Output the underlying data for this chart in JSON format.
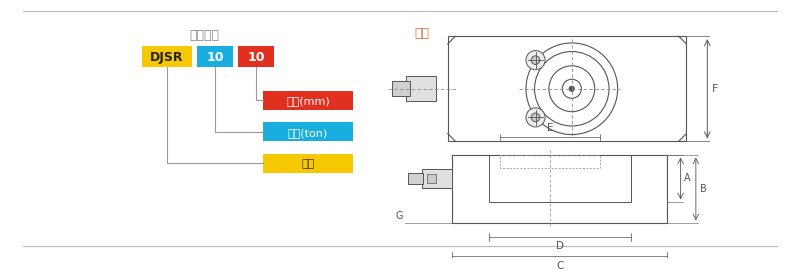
{
  "bg_color": "#FFFFFF",
  "divider_color": "#BBBBBB",
  "line_color": "#888888",
  "draw_color": "#555555",
  "title_left": "型号说明",
  "title_left_color": "#888888",
  "title_right": "尺寸",
  "title_right_color": "#D4703A",
  "djsr": {
    "text": "DJSR",
    "color": "#F5C800"
  },
  "b10": {
    "text": "10",
    "color": "#19AEDE"
  },
  "r10": {
    "text": "10",
    "color": "#E03020"
  },
  "lbl_red": {
    "text": "行程(mm)",
    "color": "#E03020"
  },
  "lbl_blue": {
    "text": "载荷(ton)",
    "color": "#19AEDE"
  },
  "lbl_yellow": {
    "text": "型号",
    "color": "#F5C800"
  },
  "connector_color": "#999999",
  "dim_color": "#444444"
}
